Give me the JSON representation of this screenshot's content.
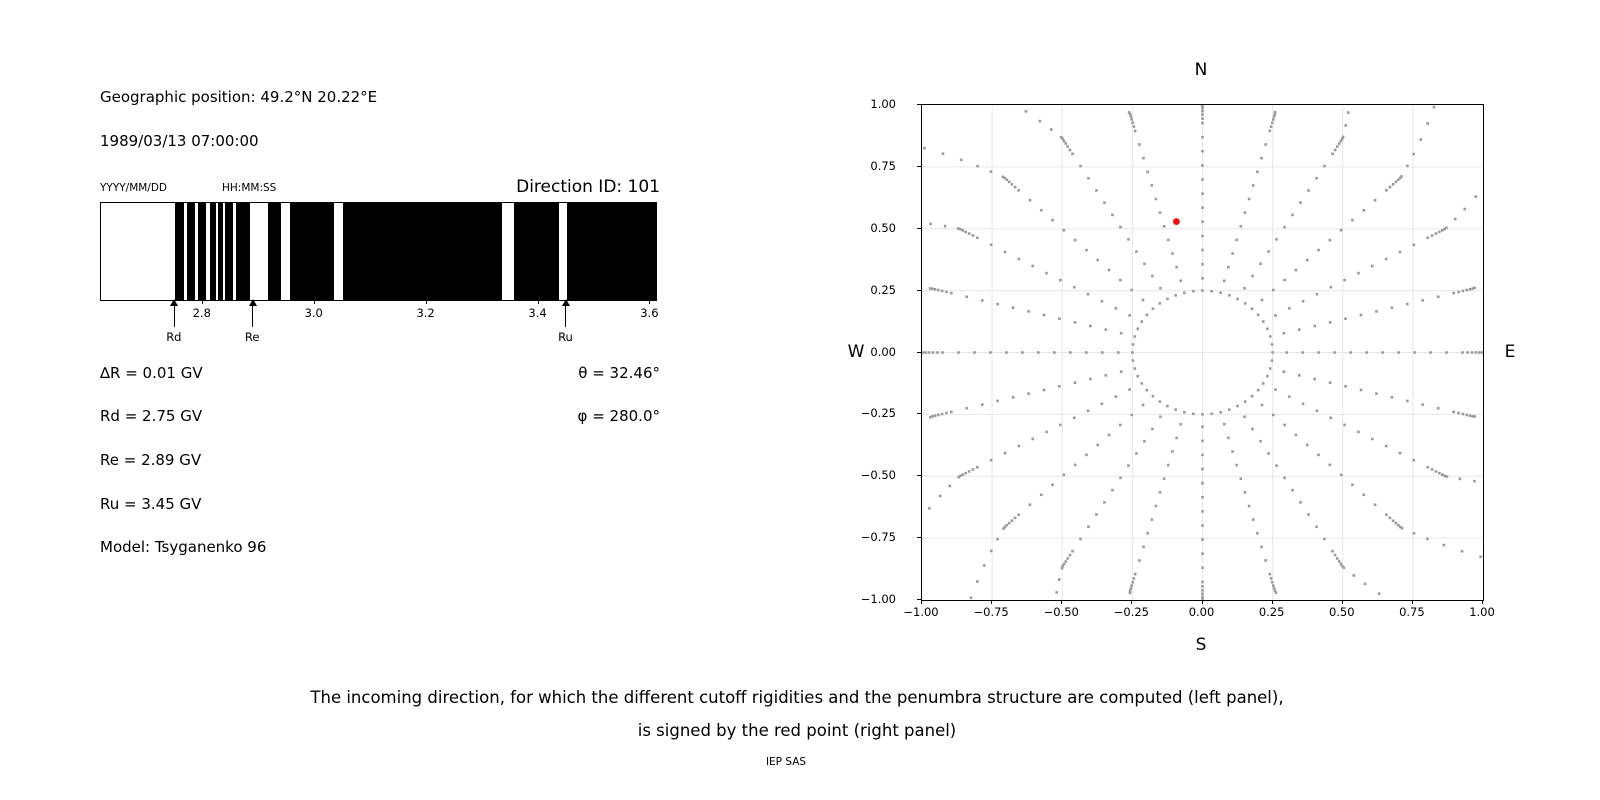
{
  "header": {
    "geo_position": "Geographic position: 49.2°N 20.22°E",
    "datetime": "1989/03/13 07:00:00",
    "date_format_label": "YYYY/MM/DD",
    "time_format_label": "HH:MM:SS",
    "direction_id": "Direction ID: 101"
  },
  "values": {
    "delta_r": "∆R = 0.01 GV",
    "rd": "Rd = 2.75 GV",
    "re": "Re = 2.89 GV",
    "ru": "Ru = 3.45 GV",
    "model": "Model: Tsyganenko 96",
    "theta": "θ = 32.46°",
    "phi": "φ = 280.0°"
  },
  "caption": {
    "line1": "The incoming direction, for which the different cutoff rigidities and the penumbra structure are computed (left panel),",
    "line2": "is signed by the red point (right panel)",
    "credit": "IEP SAS"
  },
  "chart_data": [
    {
      "type": "bar",
      "description": "cutoff rigidity penumbra structure; black = allowed bands, white = forbidden bands",
      "xlim": [
        2.618,
        3.61
      ],
      "x_ticks": [
        2.8,
        3.0,
        3.2,
        3.4,
        3.6
      ],
      "x_tick_labels": [
        "2.8",
        "3.0",
        "3.2",
        "3.4",
        "3.6"
      ],
      "bar_color": "#000000",
      "background": "#ffffff",
      "allowed_black_bands_gv": [
        [
          2.75,
          2.766
        ],
        [
          2.772,
          2.786
        ],
        [
          2.792,
          2.806
        ],
        [
          2.812,
          2.824
        ],
        [
          2.828,
          2.836
        ],
        [
          2.84,
          2.854
        ],
        [
          2.859,
          2.884
        ],
        [
          2.916,
          2.94
        ],
        [
          2.956,
          3.035
        ],
        [
          3.051,
          3.334
        ],
        [
          3.356,
          3.436
        ],
        [
          3.451,
          3.61
        ]
      ],
      "cutoff_markers": [
        {
          "label": "Rd",
          "gv": 2.75
        },
        {
          "label": "Re",
          "gv": 2.89
        },
        {
          "label": "Ru",
          "gv": 3.45
        }
      ]
    },
    {
      "type": "scatter",
      "description": "incoming-direction sky map; gray dots = direction grid, red point = computed incoming direction",
      "xlim": [
        -1,
        1
      ],
      "ylim": [
        -1,
        1
      ],
      "x_tick_values": [
        -1,
        -0.75,
        -0.5,
        -0.25,
        0,
        0.25,
        0.5,
        0.75,
        1
      ],
      "x_tick_labels": [
        "−1.00",
        "−0.75",
        "−0.50",
        "−0.25",
        "0.00",
        "0.25",
        "0.50",
        "0.75",
        "1.00"
      ],
      "y_tick_values": [
        1,
        0.75,
        0.5,
        0.25,
        0,
        -0.25,
        -0.5,
        -0.75,
        -1
      ],
      "y_tick_labels": [
        "1.00",
        "0.75",
        "0.50",
        "0.25",
        "0.00",
        "−0.25",
        "−0.50",
        "−0.75",
        "−1.00"
      ],
      "compass": {
        "top": "N",
        "bottom": "S",
        "left": "W",
        "right": "E"
      },
      "grid": true,
      "grid_color": "#e7e7e7",
      "direction_grid_dots": {
        "color": "#9a9a9a",
        "dot_size_px": 2.6,
        "ring_radius": 0.25,
        "ring_points": 48,
        "spoke_azimuth_step_deg": 15,
        "spoke_radius_start": 0.3,
        "spoke_radius_step": 0.057,
        "spoke_even_end": 0.93,
        "tip_cluster_radii": [
          0.945,
          0.961,
          0.975,
          0.987,
          0.997,
          1.005
        ],
        "tip_extension_radii": [
          1.05,
          1.1,
          1.16,
          1.225,
          1.29,
          1.355
        ],
        "tip_drift_deg_per_unit": 18,
        "clip": 1.01
      },
      "red_point": {
        "x": -0.093,
        "y": 0.529,
        "color": "#ee1111",
        "radius_px": 3.4
      }
    }
  ]
}
